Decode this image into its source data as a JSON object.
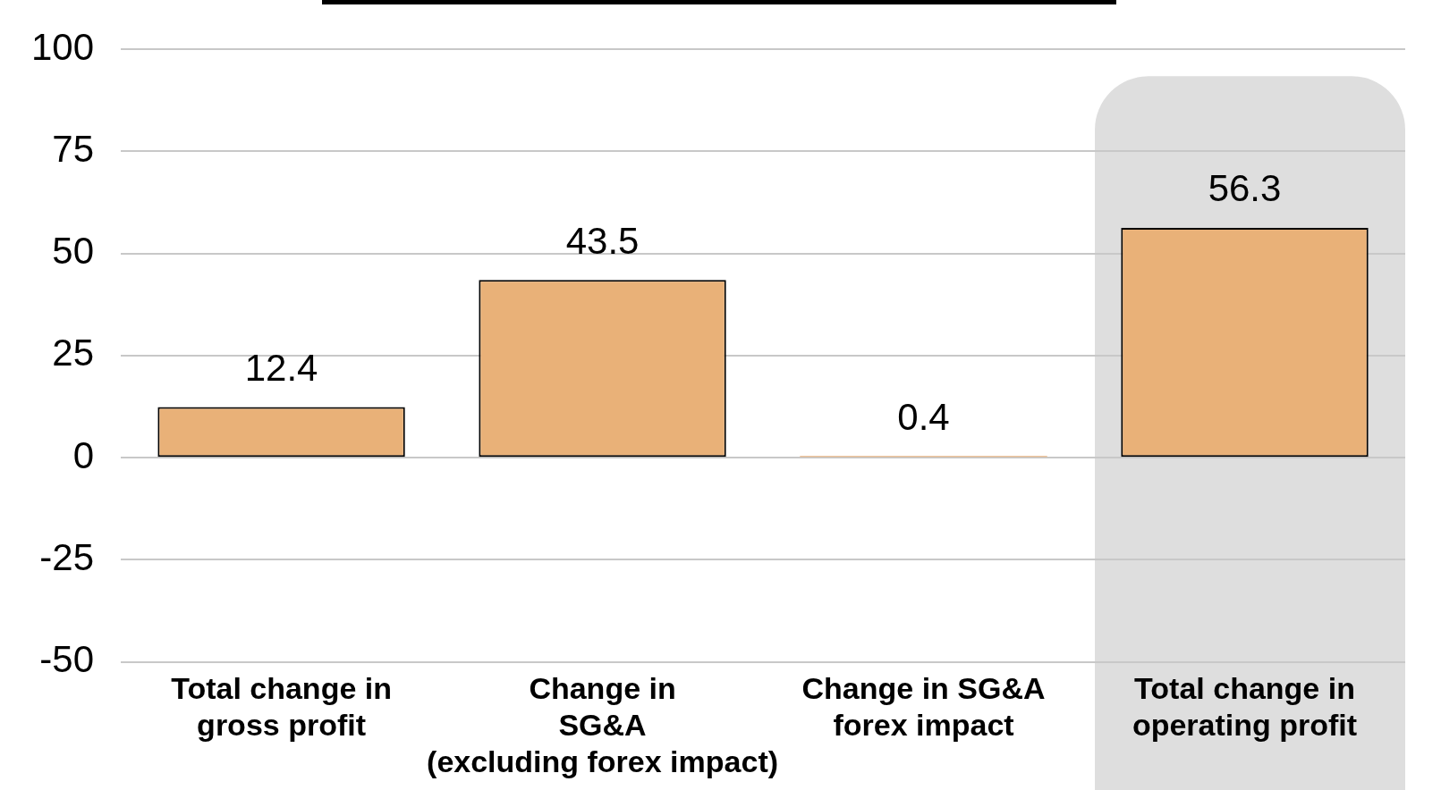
{
  "chart_data": {
    "type": "bar",
    "categories": [
      "Total change in\ngross profit",
      "Change in\nSG&A\n(excluding forex impact)",
      "Change in SG&A\nforex impact",
      "Total change in\noperating profit"
    ],
    "values": [
      12.4,
      43.5,
      0.4,
      56.3
    ],
    "color": "#e9b178",
    "ylim": [
      -50,
      100
    ],
    "yticks": [
      -50,
      -25,
      0,
      25,
      50,
      75,
      100
    ],
    "grid": "y",
    "data_labels": true,
    "bands": [
      {
        "axis": "x",
        "from": "Total change in\noperating profit",
        "to": "Total change in\noperating profit",
        "color": "#dedede"
      }
    ]
  }
}
